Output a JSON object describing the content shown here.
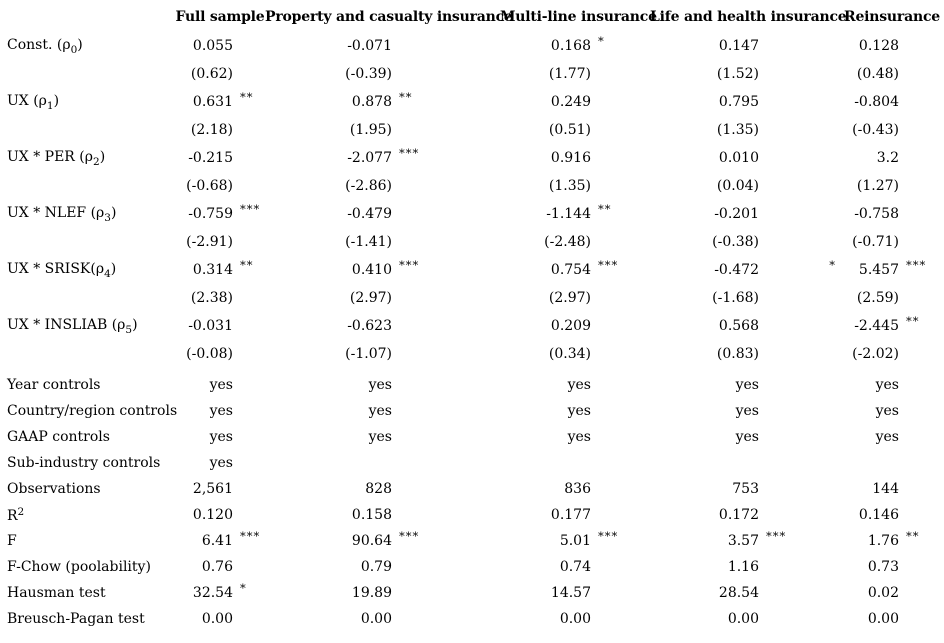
{
  "header": {
    "columns": [
      "Full sample",
      "Property and casualty insurance",
      "Multi-line insurance",
      "Life and health insurance",
      "Reinsurance"
    ]
  },
  "coef_rows": [
    {
      "label": [
        {
          "t": "text",
          "v": "Const. (ρ"
        },
        {
          "t": "sub",
          "v": "0"
        },
        {
          "t": "text",
          "v": ")"
        }
      ],
      "cells": [
        {
          "v": "0.055",
          "s": ""
        },
        {
          "v": "-0.071",
          "s": ""
        },
        {
          "v": "0.168",
          "s": "*"
        },
        {
          "v": "0.147",
          "s": ""
        },
        {
          "v": "0.128",
          "s": ""
        }
      ]
    },
    {
      "label": [],
      "cells": [
        {
          "v": "(0.62)",
          "s": ""
        },
        {
          "v": "(-0.39)",
          "s": ""
        },
        {
          "v": "(1.77)",
          "s": ""
        },
        {
          "v": "(1.52)",
          "s": ""
        },
        {
          "v": "(0.48)",
          "s": ""
        }
      ]
    },
    {
      "label": [
        {
          "t": "text",
          "v": "UX (ρ"
        },
        {
          "t": "sub",
          "v": "1"
        },
        {
          "t": "text",
          "v": ")"
        }
      ],
      "cells": [
        {
          "v": "0.631",
          "s": "**"
        },
        {
          "v": "0.878",
          "s": "**"
        },
        {
          "v": "0.249",
          "s": ""
        },
        {
          "v": "0.795",
          "s": ""
        },
        {
          "v": "-0.804",
          "s": ""
        }
      ]
    },
    {
      "label": [],
      "cells": [
        {
          "v": "(2.18)",
          "s": ""
        },
        {
          "v": "(1.95)",
          "s": ""
        },
        {
          "v": "(0.51)",
          "s": ""
        },
        {
          "v": "(1.35)",
          "s": ""
        },
        {
          "v": "(-0.43)",
          "s": ""
        }
      ]
    },
    {
      "label": [
        {
          "t": "text",
          "v": "UX * PER (ρ"
        },
        {
          "t": "sub",
          "v": "2"
        },
        {
          "t": "text",
          "v": ")"
        }
      ],
      "cells": [
        {
          "v": "-0.215",
          "s": ""
        },
        {
          "v": "-2.077",
          "s": "***"
        },
        {
          "v": "0.916",
          "s": ""
        },
        {
          "v": "0.010",
          "s": ""
        },
        {
          "v": "3.2",
          "s": ""
        }
      ]
    },
    {
      "label": [],
      "cells": [
        {
          "v": "(-0.68)",
          "s": ""
        },
        {
          "v": "(-2.86)",
          "s": ""
        },
        {
          "v": "(1.35)",
          "s": ""
        },
        {
          "v": "(0.04)",
          "s": ""
        },
        {
          "v": "(1.27)",
          "s": ""
        }
      ]
    },
    {
      "label": [
        {
          "t": "text",
          "v": "UX * NLEF (ρ"
        },
        {
          "t": "sub",
          "v": "3"
        },
        {
          "t": "text",
          "v": ")"
        }
      ],
      "cells": [
        {
          "v": "-0.759",
          "s": "***"
        },
        {
          "v": "-0.479",
          "s": ""
        },
        {
          "v": "-1.144",
          "s": "**"
        },
        {
          "v": "-0.201",
          "s": ""
        },
        {
          "v": "-0.758",
          "s": ""
        }
      ]
    },
    {
      "label": [],
      "cells": [
        {
          "v": "(-2.91)",
          "s": ""
        },
        {
          "v": "(-1.41)",
          "s": ""
        },
        {
          "v": "(-2.48)",
          "s": ""
        },
        {
          "v": "(-0.38)",
          "s": ""
        },
        {
          "v": "(-0.71)",
          "s": ""
        }
      ]
    },
    {
      "label": [
        {
          "t": "text",
          "v": "UX * SRISK(ρ"
        },
        {
          "t": "sub",
          "v": "4"
        },
        {
          "t": "text",
          "v": ")"
        }
      ],
      "cells": [
        {
          "v": "0.314",
          "s": "**"
        },
        {
          "v": "0.410",
          "s": "***"
        },
        {
          "v": "0.754",
          "s": "***"
        },
        {
          "v": "-0.472",
          "s": "*",
          "far": true
        },
        {
          "v": "5.457",
          "s": "***"
        }
      ]
    },
    {
      "label": [],
      "cells": [
        {
          "v": "(2.38)",
          "s": ""
        },
        {
          "v": "(2.97)",
          "s": ""
        },
        {
          "v": "(2.97)",
          "s": ""
        },
        {
          "v": "(-1.68)",
          "s": ""
        },
        {
          "v": "(2.59)",
          "s": ""
        }
      ]
    },
    {
      "label": [
        {
          "t": "text",
          "v": "UX * INSLIAB (ρ"
        },
        {
          "t": "sub",
          "v": "5"
        },
        {
          "t": "text",
          "v": ")"
        }
      ],
      "cells": [
        {
          "v": "-0.031",
          "s": ""
        },
        {
          "v": "-0.623",
          "s": ""
        },
        {
          "v": "0.209",
          "s": ""
        },
        {
          "v": "0.568",
          "s": ""
        },
        {
          "v": "-2.445",
          "s": "**"
        }
      ]
    },
    {
      "label": [],
      "cells": [
        {
          "v": "(-0.08)",
          "s": ""
        },
        {
          "v": "(-1.07)",
          "s": ""
        },
        {
          "v": "(0.34)",
          "s": ""
        },
        {
          "v": "(0.83)",
          "s": ""
        },
        {
          "v": "(-2.02)",
          "s": ""
        }
      ]
    }
  ],
  "bottom_rows": [
    {
      "label": [
        {
          "t": "text",
          "v": "Year controls"
        }
      ],
      "cells": [
        {
          "v": "yes",
          "s": ""
        },
        {
          "v": "yes",
          "s": ""
        },
        {
          "v": "yes",
          "s": ""
        },
        {
          "v": "yes",
          "s": ""
        },
        {
          "v": "yes",
          "s": ""
        }
      ]
    },
    {
      "label": [
        {
          "t": "text",
          "v": "Country/region controls"
        }
      ],
      "cells": [
        {
          "v": "yes",
          "s": ""
        },
        {
          "v": "yes",
          "s": ""
        },
        {
          "v": "yes",
          "s": ""
        },
        {
          "v": "yes",
          "s": ""
        },
        {
          "v": "yes",
          "s": ""
        }
      ]
    },
    {
      "label": [
        {
          "t": "text",
          "v": "GAAP controls"
        }
      ],
      "cells": [
        {
          "v": "yes",
          "s": ""
        },
        {
          "v": "yes",
          "s": ""
        },
        {
          "v": "yes",
          "s": ""
        },
        {
          "v": "yes",
          "s": ""
        },
        {
          "v": "yes",
          "s": ""
        }
      ]
    },
    {
      "label": [
        {
          "t": "text",
          "v": "Sub-industry controls"
        }
      ],
      "cells": [
        {
          "v": "yes",
          "s": ""
        },
        {
          "v": "",
          "s": ""
        },
        {
          "v": "",
          "s": ""
        },
        {
          "v": "",
          "s": ""
        },
        {
          "v": "",
          "s": ""
        }
      ]
    },
    {
      "label": [
        {
          "t": "text",
          "v": "Observations"
        }
      ],
      "cells": [
        {
          "v": "2,561",
          "s": ""
        },
        {
          "v": "828",
          "s": ""
        },
        {
          "v": "836",
          "s": ""
        },
        {
          "v": "753",
          "s": ""
        },
        {
          "v": "144",
          "s": ""
        }
      ]
    },
    {
      "label": [
        {
          "t": "text",
          "v": "R"
        },
        {
          "t": "sup",
          "v": "2"
        }
      ],
      "cells": [
        {
          "v": "0.120",
          "s": ""
        },
        {
          "v": "0.158",
          "s": ""
        },
        {
          "v": "0.177",
          "s": ""
        },
        {
          "v": "0.172",
          "s": ""
        },
        {
          "v": "0.146",
          "s": ""
        }
      ]
    },
    {
      "label": [
        {
          "t": "text",
          "v": "F"
        }
      ],
      "cells": [
        {
          "v": "6.41",
          "s": "***"
        },
        {
          "v": "90.64",
          "s": "***"
        },
        {
          "v": "5.01",
          "s": "***"
        },
        {
          "v": "3.57",
          "s": "***"
        },
        {
          "v": "1.76",
          "s": "**"
        }
      ]
    },
    {
      "label": [
        {
          "t": "text",
          "v": "F-Chow (poolability)"
        }
      ],
      "cells": [
        {
          "v": "0.76",
          "s": ""
        },
        {
          "v": "0.79",
          "s": ""
        },
        {
          "v": "0.74",
          "s": ""
        },
        {
          "v": "1.16",
          "s": ""
        },
        {
          "v": "0.73",
          "s": ""
        }
      ]
    },
    {
      "label": [
        {
          "t": "text",
          "v": "Hausman test"
        }
      ],
      "cells": [
        {
          "v": "32.54",
          "s": "*"
        },
        {
          "v": "19.89",
          "s": ""
        },
        {
          "v": "14.57",
          "s": ""
        },
        {
          "v": "28.54",
          "s": ""
        },
        {
          "v": "0.02",
          "s": ""
        }
      ]
    },
    {
      "label": [
        {
          "t": "text",
          "v": "Breusch-Pagan test"
        }
      ],
      "cells": [
        {
          "v": "0.00",
          "s": ""
        },
        {
          "v": "0.00",
          "s": ""
        },
        {
          "v": "0.00",
          "s": ""
        },
        {
          "v": "0.00",
          "s": ""
        },
        {
          "v": "0.00",
          "s": ""
        }
      ]
    }
  ]
}
